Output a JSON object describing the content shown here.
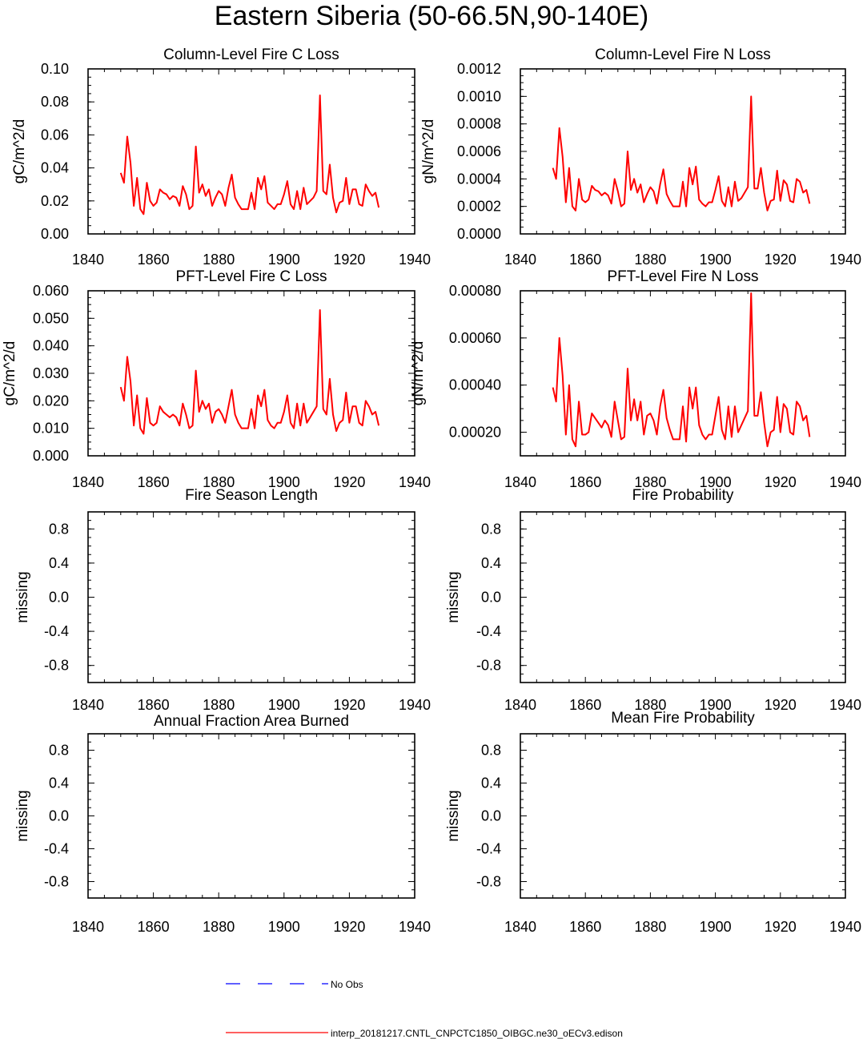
{
  "title": "Eastern Siberia (50-66.5N,90-140E)",
  "colors": {
    "model": "#ff0000",
    "obs": "#0000ff",
    "axis": "#000000"
  },
  "legend": {
    "obs_label": "No Obs",
    "model_label": "interp_20181217.CNTL_CNPCTC1850_OIBGC.ne30_oECv3.edison"
  },
  "chart_data": [
    {
      "type": "line",
      "title": "Column-Level Fire C Loss",
      "ylabel": "gC/m^2/d",
      "xlim": [
        1840,
        1940
      ],
      "ylim": [
        0,
        0.1
      ],
      "xticks": [
        "1840",
        "1860",
        "1880",
        "1900",
        "1920",
        "1940"
      ],
      "yticks": [
        "0.00",
        "0.02",
        "0.04",
        "0.06",
        "0.08",
        "0.10"
      ],
      "x_start": 1850,
      "series": [
        {
          "name": "model",
          "values": [
            0.037,
            0.031,
            0.059,
            0.043,
            0.017,
            0.034,
            0.015,
            0.012,
            0.031,
            0.02,
            0.017,
            0.019,
            0.027,
            0.025,
            0.024,
            0.021,
            0.023,
            0.022,
            0.017,
            0.029,
            0.024,
            0.015,
            0.017,
            0.053,
            0.025,
            0.03,
            0.023,
            0.027,
            0.017,
            0.022,
            0.026,
            0.024,
            0.017,
            0.028,
            0.036,
            0.022,
            0.018,
            0.015,
            0.015,
            0.015,
            0.025,
            0.015,
            0.034,
            0.027,
            0.035,
            0.019,
            0.017,
            0.015,
            0.018,
            0.018,
            0.024,
            0.032,
            0.018,
            0.015,
            0.026,
            0.015,
            0.028,
            0.018,
            0.02,
            0.022,
            0.026,
            0.084,
            0.026,
            0.024,
            0.042,
            0.022,
            0.013,
            0.019,
            0.02,
            0.034,
            0.018,
            0.027,
            0.027,
            0.018,
            0.017,
            0.03,
            0.026,
            0.023,
            0.025,
            0.016
          ]
        }
      ]
    },
    {
      "type": "line",
      "title": "Column-Level Fire N Loss",
      "ylabel": "gN/m^2/d",
      "xlim": [
        1840,
        1940
      ],
      "ylim": [
        0,
        0.0012
      ],
      "xticks": [
        "1840",
        "1860",
        "1880",
        "1900",
        "1920",
        "1940"
      ],
      "yticks": [
        "0.0000",
        "0.0002",
        "0.0004",
        "0.0006",
        "0.0008",
        "0.0010",
        "0.0012"
      ],
      "x_start": 1850,
      "series": [
        {
          "name": "model",
          "values": [
            0.00048,
            0.0004,
            0.00077,
            0.00056,
            0.00023,
            0.00048,
            0.0002,
            0.00017,
            0.0004,
            0.00025,
            0.00023,
            0.00025,
            0.00035,
            0.00032,
            0.00031,
            0.00028,
            0.0003,
            0.00028,
            0.00022,
            0.0004,
            0.00031,
            0.0002,
            0.00022,
            0.0006,
            0.00032,
            0.0004,
            0.0003,
            0.00036,
            0.00023,
            0.00029,
            0.00034,
            0.00031,
            0.00022,
            0.00036,
            0.00047,
            0.00029,
            0.00024,
            0.0002,
            0.0002,
            0.0002,
            0.00038,
            0.0002,
            0.00048,
            0.00036,
            0.00049,
            0.00025,
            0.00022,
            0.0002,
            0.00023,
            0.00023,
            0.00032,
            0.00042,
            0.00024,
            0.0002,
            0.00034,
            0.0002,
            0.00038,
            0.00024,
            0.00026,
            0.0003,
            0.00034,
            0.001,
            0.00033,
            0.00033,
            0.00048,
            0.0003,
            0.00017,
            0.00024,
            0.00025,
            0.00046,
            0.00024,
            0.00039,
            0.00036,
            0.00024,
            0.00023,
            0.0004,
            0.00038,
            0.0003,
            0.00032,
            0.00022
          ]
        }
      ]
    },
    {
      "type": "line",
      "title": "PFT-Level Fire C Loss",
      "ylabel": "gC/m^2/d",
      "xlim": [
        1840,
        1940
      ],
      "ylim": [
        0,
        0.06
      ],
      "xticks": [
        "1840",
        "1860",
        "1880",
        "1900",
        "1920",
        "1940"
      ],
      "yticks": [
        "0.000",
        "0.010",
        "0.020",
        "0.030",
        "0.040",
        "0.050",
        "0.060"
      ],
      "x_start": 1850,
      "series": [
        {
          "name": "model",
          "values": [
            0.025,
            0.02,
            0.036,
            0.027,
            0.011,
            0.022,
            0.01,
            0.008,
            0.021,
            0.012,
            0.011,
            0.012,
            0.018,
            0.016,
            0.015,
            0.014,
            0.015,
            0.014,
            0.011,
            0.019,
            0.015,
            0.01,
            0.011,
            0.031,
            0.016,
            0.02,
            0.017,
            0.019,
            0.012,
            0.016,
            0.017,
            0.015,
            0.012,
            0.018,
            0.024,
            0.015,
            0.012,
            0.01,
            0.01,
            0.01,
            0.017,
            0.01,
            0.022,
            0.018,
            0.024,
            0.013,
            0.011,
            0.01,
            0.012,
            0.012,
            0.016,
            0.022,
            0.012,
            0.01,
            0.019,
            0.011,
            0.019,
            0.012,
            0.014,
            0.016,
            0.018,
            0.053,
            0.017,
            0.015,
            0.028,
            0.015,
            0.009,
            0.012,
            0.013,
            0.023,
            0.012,
            0.018,
            0.018,
            0.012,
            0.011,
            0.02,
            0.018,
            0.015,
            0.016,
            0.011
          ]
        }
      ]
    },
    {
      "type": "line",
      "title": "PFT-Level Fire N Loss",
      "ylabel": "gN/m^2/d",
      "xlim": [
        1840,
        1940
      ],
      "ylim": [
        0.0001,
        0.0008
      ],
      "xticks": [
        "1840",
        "1860",
        "1880",
        "1900",
        "1920",
        "1940"
      ],
      "yticks": [
        "0.00020",
        "0.00040",
        "0.00060",
        "0.00080"
      ],
      "ytick_values": [
        0.0002,
        0.0004,
        0.0006,
        0.0008
      ],
      "x_start": 1850,
      "series": [
        {
          "name": "model",
          "values": [
            0.00039,
            0.00033,
            0.0006,
            0.00044,
            0.00019,
            0.0004,
            0.00017,
            0.00014,
            0.00033,
            0.00019,
            0.00019,
            0.0002,
            0.00028,
            0.00026,
            0.00024,
            0.00022,
            0.00025,
            0.00023,
            0.00018,
            0.00033,
            0.00025,
            0.00017,
            0.00018,
            0.00047,
            0.00025,
            0.00034,
            0.00025,
            0.00033,
            0.00019,
            0.00027,
            0.00028,
            0.00025,
            0.00019,
            0.00031,
            0.00038,
            0.00026,
            0.00021,
            0.00017,
            0.00017,
            0.00017,
            0.00031,
            0.00016,
            0.00039,
            0.0003,
            0.00039,
            0.00023,
            0.00019,
            0.00017,
            0.00019,
            0.00019,
            0.00027,
            0.00035,
            0.00021,
            0.00017,
            0.00031,
            0.00018,
            0.00031,
            0.0002,
            0.00023,
            0.00026,
            0.00029,
            0.00079,
            0.00027,
            0.00027,
            0.00037,
            0.00024,
            0.00014,
            0.0002,
            0.00021,
            0.00035,
            0.0002,
            0.00032,
            0.0003,
            0.0002,
            0.00019,
            0.00033,
            0.00031,
            0.00025,
            0.00027,
            0.00018
          ]
        }
      ]
    },
    {
      "type": "line",
      "title": "Fire Season Length",
      "ylabel": "missing",
      "xlim": [
        1840,
        1940
      ],
      "ylim": [
        -1,
        1
      ],
      "xticks": [
        "1840",
        "1860",
        "1880",
        "1900",
        "1920",
        "1940"
      ],
      "yticks": [
        "-0.8",
        "-0.4",
        "0.0",
        "0.4",
        "0.8"
      ],
      "ytick_values": [
        -0.8,
        -0.4,
        0.0,
        0.4,
        0.8
      ],
      "series": []
    },
    {
      "type": "line",
      "title": "Fire Probability",
      "ylabel": "missing",
      "xlim": [
        1840,
        1940
      ],
      "ylim": [
        -1,
        1
      ],
      "xticks": [
        "1840",
        "1860",
        "1880",
        "1900",
        "1920",
        "1940"
      ],
      "yticks": [
        "-0.8",
        "-0.4",
        "0.0",
        "0.4",
        "0.8"
      ],
      "ytick_values": [
        -0.8,
        -0.4,
        0.0,
        0.4,
        0.8
      ],
      "series": []
    },
    {
      "type": "line",
      "title": "Annual Fraction Area Burned",
      "ylabel": "missing",
      "xlim": [
        1840,
        1940
      ],
      "ylim": [
        -1,
        1
      ],
      "xticks": [
        "1840",
        "1860",
        "1880",
        "1900",
        "1920",
        "1940"
      ],
      "yticks": [
        "-0.8",
        "-0.4",
        "0.0",
        "0.4",
        "0.8"
      ],
      "ytick_values": [
        -0.8,
        -0.4,
        0.0,
        0.4,
        0.8
      ],
      "series": []
    },
    {
      "type": "line",
      "title": "Mean Fire Probability",
      "ylabel": "missing",
      "xlim": [
        1840,
        1940
      ],
      "ylim": [
        -1,
        1
      ],
      "xticks": [
        "1840",
        "1860",
        "1880",
        "1900",
        "1920",
        "1940"
      ],
      "yticks": [
        "-0.8",
        "-0.4",
        "0.0",
        "0.4",
        "0.8"
      ],
      "ytick_values": [
        -0.8,
        -0.4,
        0.0,
        0.4,
        0.8
      ],
      "series": []
    }
  ]
}
